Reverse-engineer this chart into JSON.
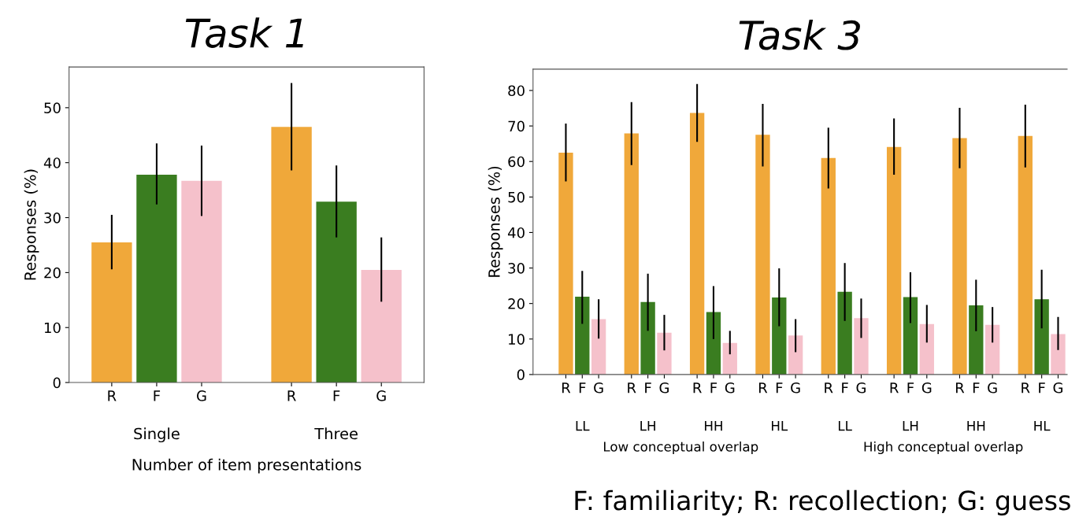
{
  "chart_data": [
    {
      "type": "bar",
      "title": "Task 1",
      "ylabel": "Responses (%)",
      "xlabel": "Number of item presentations",
      "categories": [
        "R",
        "F",
        "G",
        null,
        "R",
        "F",
        "G"
      ],
      "values": [
        25.5,
        37.8,
        36.7,
        null,
        46.5,
        32.9,
        20.5
      ],
      "colors": [
        "#f0a83a",
        "#3a7d20",
        "#f5c1cb",
        null,
        "#f0a83a",
        "#3a7d20",
        "#f5c1cb"
      ],
      "errors": [
        [
          20.6,
          30.5
        ],
        [
          32.4,
          43.5
        ],
        [
          30.3,
          43.1
        ],
        null,
        [
          38.6,
          54.5
        ],
        [
          26.4,
          39.5
        ],
        [
          14.7,
          26.4
        ]
      ],
      "ylim": [
        0,
        57.4
      ],
      "yticks": [
        0,
        10,
        20,
        30,
        40,
        50
      ],
      "grid": false,
      "legend": false,
      "annotations": [
        "Single",
        "Three"
      ]
    },
    {
      "type": "bar",
      "title": "Task 3",
      "ylabel": "Responses (%)",
      "categories": [
        "R",
        "F",
        "G",
        null,
        "R",
        "F",
        "G",
        null,
        "R",
        "F",
        "G",
        null,
        "R",
        "F",
        "G",
        null,
        "R",
        "F",
        "G",
        null,
        "R",
        "F",
        "G",
        null,
        "R",
        "F",
        "G",
        null,
        "R",
        "F",
        "G"
      ],
      "values": [
        62.5,
        21.9,
        15.6,
        null,
        67.9,
        20.4,
        11.8,
        null,
        73.7,
        17.6,
        8.9,
        null,
        67.5,
        21.7,
        11.0,
        null,
        61.0,
        23.3,
        15.9,
        null,
        64.1,
        21.8,
        14.2,
        null,
        66.6,
        19.5,
        14.0,
        null,
        67.2,
        21.2,
        11.4
      ],
      "colors": [
        "#f0a83a",
        "#3a7d20",
        "#f5c1cb",
        null,
        "#f0a83a",
        "#3a7d20",
        "#f5c1cb",
        null,
        "#f0a83a",
        "#3a7d20",
        "#f5c1cb",
        null,
        "#f0a83a",
        "#3a7d20",
        "#f5c1cb",
        null,
        "#f0a83a",
        "#3a7d20",
        "#f5c1cb",
        null,
        "#f0a83a",
        "#3a7d20",
        "#f5c1cb",
        null,
        "#f0a83a",
        "#3a7d20",
        "#f5c1cb",
        null,
        "#f0a83a",
        "#3a7d20",
        "#f5c1cb"
      ],
      "errors": [
        [
          54.4,
          70.7
        ],
        [
          14.3,
          29.2
        ],
        [
          10.1,
          21.2
        ],
        null,
        [
          59.0,
          76.7
        ],
        [
          12.3,
          28.4
        ],
        [
          6.8,
          16.8
        ],
        null,
        [
          65.5,
          81.8
        ],
        [
          10.0,
          24.9
        ],
        [
          5.7,
          12.3
        ],
        null,
        [
          58.6,
          76.2
        ],
        [
          13.6,
          29.9
        ],
        [
          6.3,
          15.6
        ],
        null,
        [
          52.4,
          69.5
        ],
        [
          15.1,
          31.4
        ],
        [
          10.3,
          21.4
        ],
        null,
        [
          56.3,
          72.1
        ],
        [
          14.5,
          28.8
        ],
        [
          9.0,
          19.6
        ],
        null,
        [
          58.1,
          75.1
        ],
        [
          12.2,
          26.7
        ],
        [
          9.0,
          19.0
        ],
        null,
        [
          58.3,
          76.0
        ],
        [
          13.0,
          29.5
        ],
        [
          6.9,
          16.2
        ]
      ],
      "ylim": [
        0,
        86
      ],
      "yticks": [
        0,
        10,
        20,
        30,
        40,
        50,
        60,
        70,
        80
      ],
      "grid": false,
      "legend": false,
      "annotations": [
        "LL",
        "LH",
        "HH",
        "HL",
        "LL",
        "LH",
        "HH",
        "HL",
        "Low conceptual overlap",
        "High conceptual overlap",
        "F: familiarity; R: recollection; G: guess"
      ]
    }
  ]
}
